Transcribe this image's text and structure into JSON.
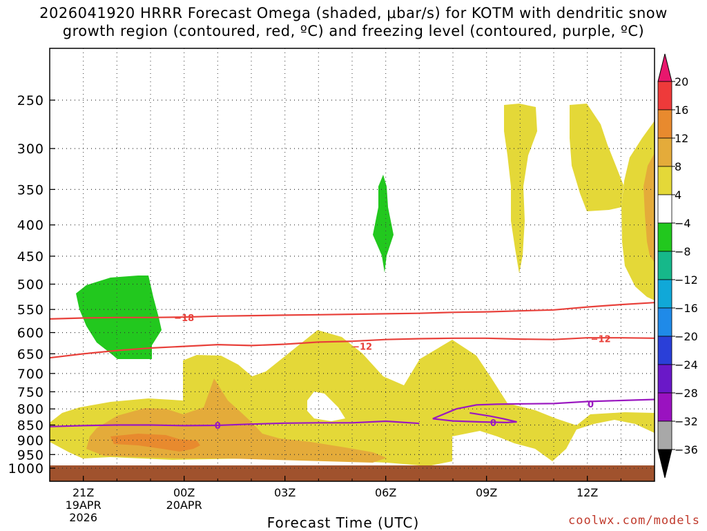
{
  "title_line1": "2026041920 HRRR Forecast Omega (shaded, μbar/s) for KOTM with dendritic snow",
  "title_line2": "growth region (contoured, red, ºC) and freezing level (contoured, purple, ºC)",
  "credit": "coolwx.com/models",
  "chart_data": {
    "type": "time-height cross section",
    "xlabel": "Forecast Time (UTC)",
    "ylabel": "",
    "x_ticks": [
      {
        "hour": 0,
        "label": "21Z",
        "sub1": "19APR",
        "sub2": "2026"
      },
      {
        "hour": 3,
        "label": "00Z",
        "sub1": "20APR",
        "sub2": ""
      },
      {
        "hour": 6,
        "label": "03Z",
        "sub1": "",
        "sub2": ""
      },
      {
        "hour": 9,
        "label": "06Z",
        "sub1": "",
        "sub2": ""
      },
      {
        "hour": 12,
        "label": "09Z",
        "sub1": "",
        "sub2": ""
      },
      {
        "hour": 15,
        "label": "12Z",
        "sub1": "",
        "sub2": ""
      }
    ],
    "x_range_hours": [
      -1,
      17
    ],
    "y_ticks": [
      250,
      300,
      350,
      400,
      450,
      500,
      550,
      600,
      650,
      700,
      750,
      800,
      850,
      900,
      950,
      1000
    ],
    "y_range_mb": [
      200,
      1025
    ],
    "y_scale": "log-pressure",
    "colorbar": {
      "labels": [
        "20",
        "16",
        "12",
        "8",
        "4",
        "−4",
        "−8",
        "−12",
        "−16",
        "−20",
        "−24",
        "−28",
        "−32",
        "−36"
      ],
      "colors": [
        "#e8176d",
        "#ee3a3a",
        "#e88a2e",
        "#e4ab3a",
        "#e4d838",
        "#ffffff",
        "#22c81e",
        "#16b88a",
        "#10a8d8",
        "#1f8ae8",
        "#2a3fd8",
        "#6a18c8",
        "#9a12c0",
        "#a8a8a8",
        "#000000"
      ]
    },
    "shading_levels": {
      "w4": "#e4d838",
      "w8": "#e4ab3a",
      "w12": "#e88a2e",
      "m4": "#22c81e"
    },
    "ground_color": "#a0522d",
    "isotherm_color": "#e8403a",
    "freezing_color": "#9a18c0",
    "contour_labels": {
      "neg18": "−18",
      "neg12": "−12",
      "zero": "0"
    },
    "contours": [
      {
        "label": "−18",
        "color": "red",
        "points": [
          [
            -1,
            570
          ],
          [
            0,
            568
          ],
          [
            1,
            567
          ],
          [
            2,
            567
          ],
          [
            3,
            566
          ],
          [
            4,
            564
          ],
          [
            5,
            563
          ],
          [
            6,
            562
          ],
          [
            7,
            561
          ],
          [
            8,
            560
          ],
          [
            9,
            559
          ],
          [
            10,
            558
          ],
          [
            11,
            556
          ],
          [
            12,
            555
          ],
          [
            13,
            553
          ],
          [
            14,
            551
          ],
          [
            15,
            545
          ],
          [
            16,
            540
          ],
          [
            17,
            536
          ]
        ]
      },
      {
        "label": "−12",
        "color": "red",
        "points": [
          [
            -1,
            660
          ],
          [
            0,
            650
          ],
          [
            1,
            642
          ],
          [
            2,
            636
          ],
          [
            3,
            632
          ],
          [
            4,
            628
          ],
          [
            5,
            630
          ],
          [
            6,
            627
          ],
          [
            7,
            622
          ],
          [
            8,
            620
          ],
          [
            9,
            616
          ],
          [
            10,
            614
          ],
          [
            11,
            613
          ],
          [
            12,
            613
          ],
          [
            13,
            615
          ],
          [
            14,
            616
          ],
          [
            15,
            612
          ],
          [
            16,
            612
          ],
          [
            17,
            613
          ]
        ]
      },
      {
        "label": "0",
        "color": "purple",
        "points": [
          [
            -1,
            855
          ],
          [
            0,
            852
          ],
          [
            1,
            850
          ],
          [
            2,
            850
          ],
          [
            3,
            852
          ],
          [
            4,
            851
          ],
          [
            5,
            847
          ],
          [
            6,
            844
          ],
          [
            7,
            843
          ],
          [
            8,
            843
          ],
          [
            9,
            838
          ],
          [
            10,
            845
          ]
        ]
      }
    ]
  }
}
